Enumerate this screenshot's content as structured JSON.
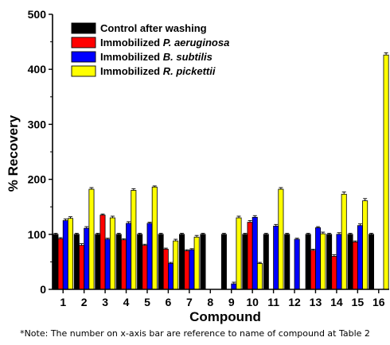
{
  "chart_data": {
    "type": "bar",
    "xlabel": "Compound",
    "ylabel": "% Recovery",
    "ylim": [
      0,
      500
    ],
    "yticks": [
      0,
      100,
      200,
      300,
      400,
      500
    ],
    "categories": [
      "1",
      "2",
      "3",
      "4",
      "5",
      "6",
      "7",
      "8",
      "9",
      "10",
      "11",
      "12",
      "13",
      "14",
      "15",
      "16"
    ],
    "legend_placement": "top-left",
    "series": [
      {
        "name_parts": [
          "Control after washing"
        ],
        "color": "#000000",
        "values": [
          100,
          100,
          100,
          100,
          100,
          100,
          100,
          100,
          100,
          100,
          100,
          100,
          100,
          100,
          100,
          100
        ],
        "errors": [
          2,
          2,
          2,
          2,
          2,
          2,
          2,
          2,
          2,
          2,
          2,
          2,
          2,
          2,
          2,
          2
        ]
      },
      {
        "name_parts": [
          "Immobilized ",
          "P. aeruginosa"
        ],
        "color": "#ff0000",
        "values": [
          92,
          80,
          135,
          90,
          80,
          73,
          70,
          null,
          null,
          122,
          null,
          null,
          71,
          60,
          86,
          null
        ],
        "errors": [
          2,
          3,
          2,
          2,
          2,
          2,
          2,
          null,
          null,
          3,
          null,
          null,
          2,
          3,
          2,
          null
        ]
      },
      {
        "name_parts": [
          "Immobilized ",
          "B. subtilis"
        ],
        "color": "#0000ff",
        "values": [
          125,
          111,
          91,
          120,
          120,
          47,
          72,
          null,
          10,
          131,
          115,
          91,
          112,
          100,
          116,
          null
        ],
        "errors": [
          3,
          3,
          2,
          3,
          2,
          2,
          2,
          null,
          3,
          3,
          3,
          2,
          2,
          3,
          3,
          null
        ]
      },
      {
        "name_parts": [
          "Immobilized ",
          "R. pickettii"
        ],
        "color": "#ffff00",
        "values": [
          129,
          182,
          130,
          180,
          186,
          88,
          95,
          null,
          130,
          47,
          182,
          null,
          101,
          173,
          161,
          426
        ],
        "errors": [
          3,
          3,
          3,
          3,
          2,
          3,
          3,
          null,
          3,
          2,
          3,
          null,
          3,
          4,
          4,
          4
        ]
      }
    ]
  },
  "note": "*Note: The number on x-axis bar are reference to name of compound at Table 2"
}
